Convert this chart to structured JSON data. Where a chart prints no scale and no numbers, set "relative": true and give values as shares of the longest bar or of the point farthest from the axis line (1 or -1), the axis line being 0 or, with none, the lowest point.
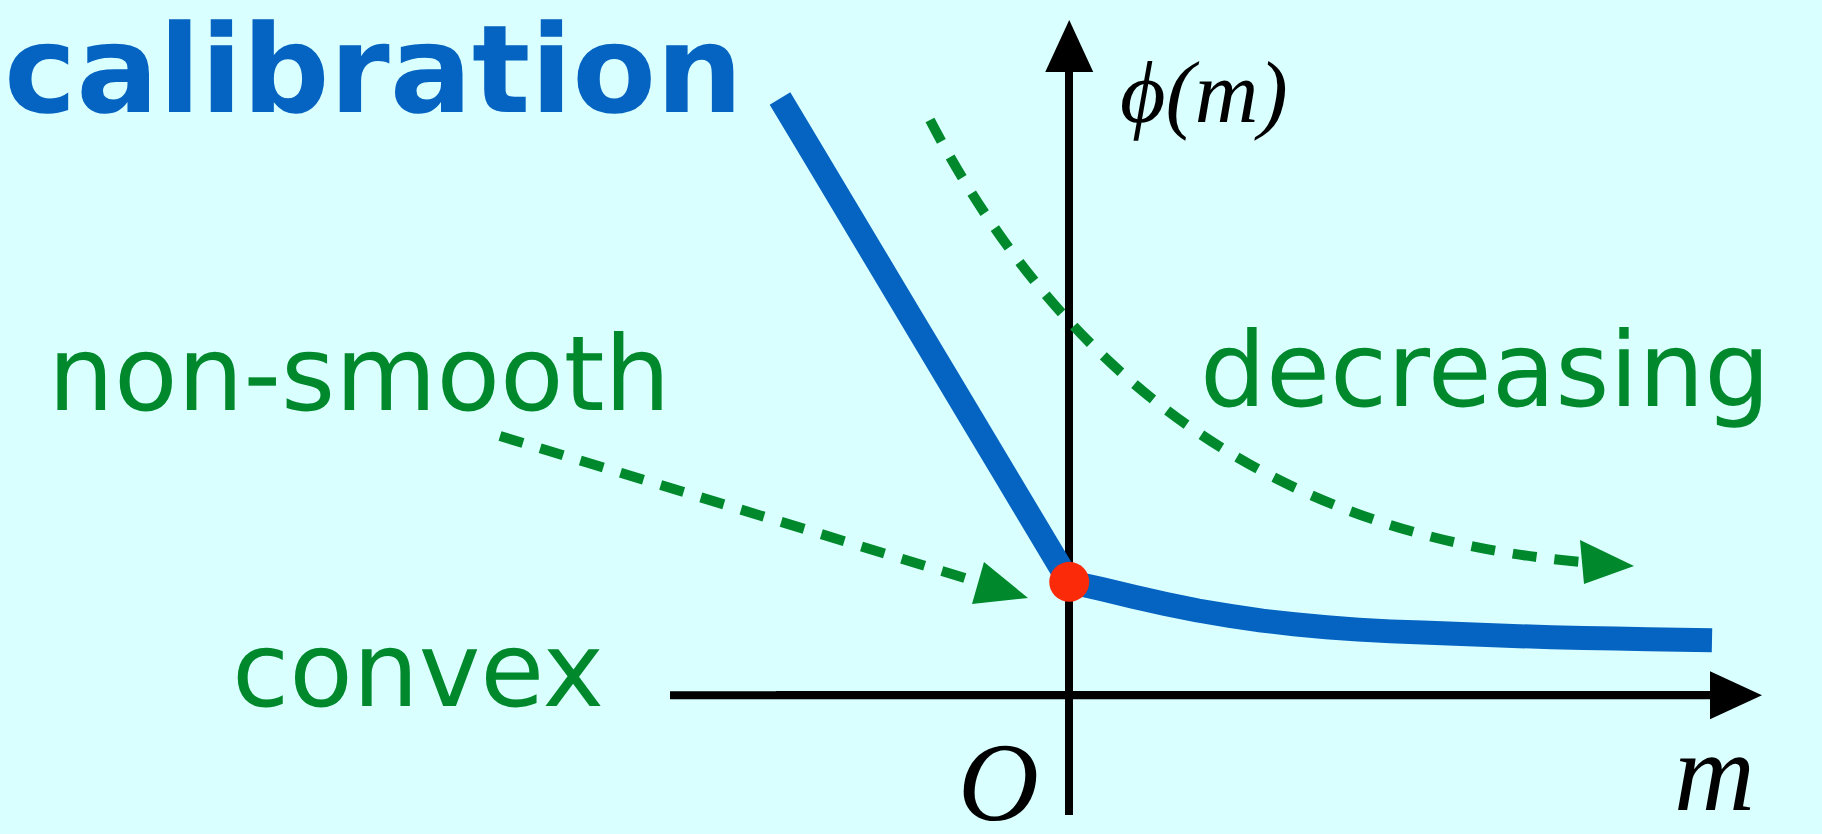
{
  "chart_data": {
    "type": "line",
    "title": "calibration",
    "xlabel": "m",
    "ylabel": "ϕ(m)",
    "relative": true,
    "legend": false,
    "grid": false,
    "categories": [
      null,
      null,
      null,
      null,
      null,
      null,
      null,
      null,
      null,
      null,
      null,
      null,
      null,
      null,
      null,
      null,
      null,
      null,
      null,
      null,
      null,
      null,
      null,
      null,
      null,
      null,
      null,
      null,
      null,
      null
    ],
    "series": [
      {
        "type": "line",
        "color": "#0563c1",
        "values": [
          1,
          0.91,
          0.82,
          0.73,
          0.64,
          0.55,
          0.46,
          0.37,
          0.28,
          0.19,
          0.178,
          0.165,
          0.153,
          0.142,
          0.133,
          0.125,
          0.119,
          0.114,
          0.11,
          0.107,
          0.105,
          0.103,
          0.101,
          0.099,
          0.097,
          0.096,
          0.095,
          0.094,
          0.093,
          0.092
        ]
      },
      {
        "type": "line",
        "color": "#fb2a09",
        "marker": "circle",
        "values": [
          null,
          null,
          null,
          null,
          null,
          null,
          null,
          null,
          null,
          0.19,
          null,
          null,
          null,
          null,
          null,
          null,
          null,
          null,
          null,
          null,
          null,
          null,
          null,
          null,
          null,
          null,
          null,
          null,
          null,
          null
        ]
      }
    ],
    "annotations": [
      "non-smooth",
      "decreasing",
      "convex",
      "O"
    ]
  }
}
